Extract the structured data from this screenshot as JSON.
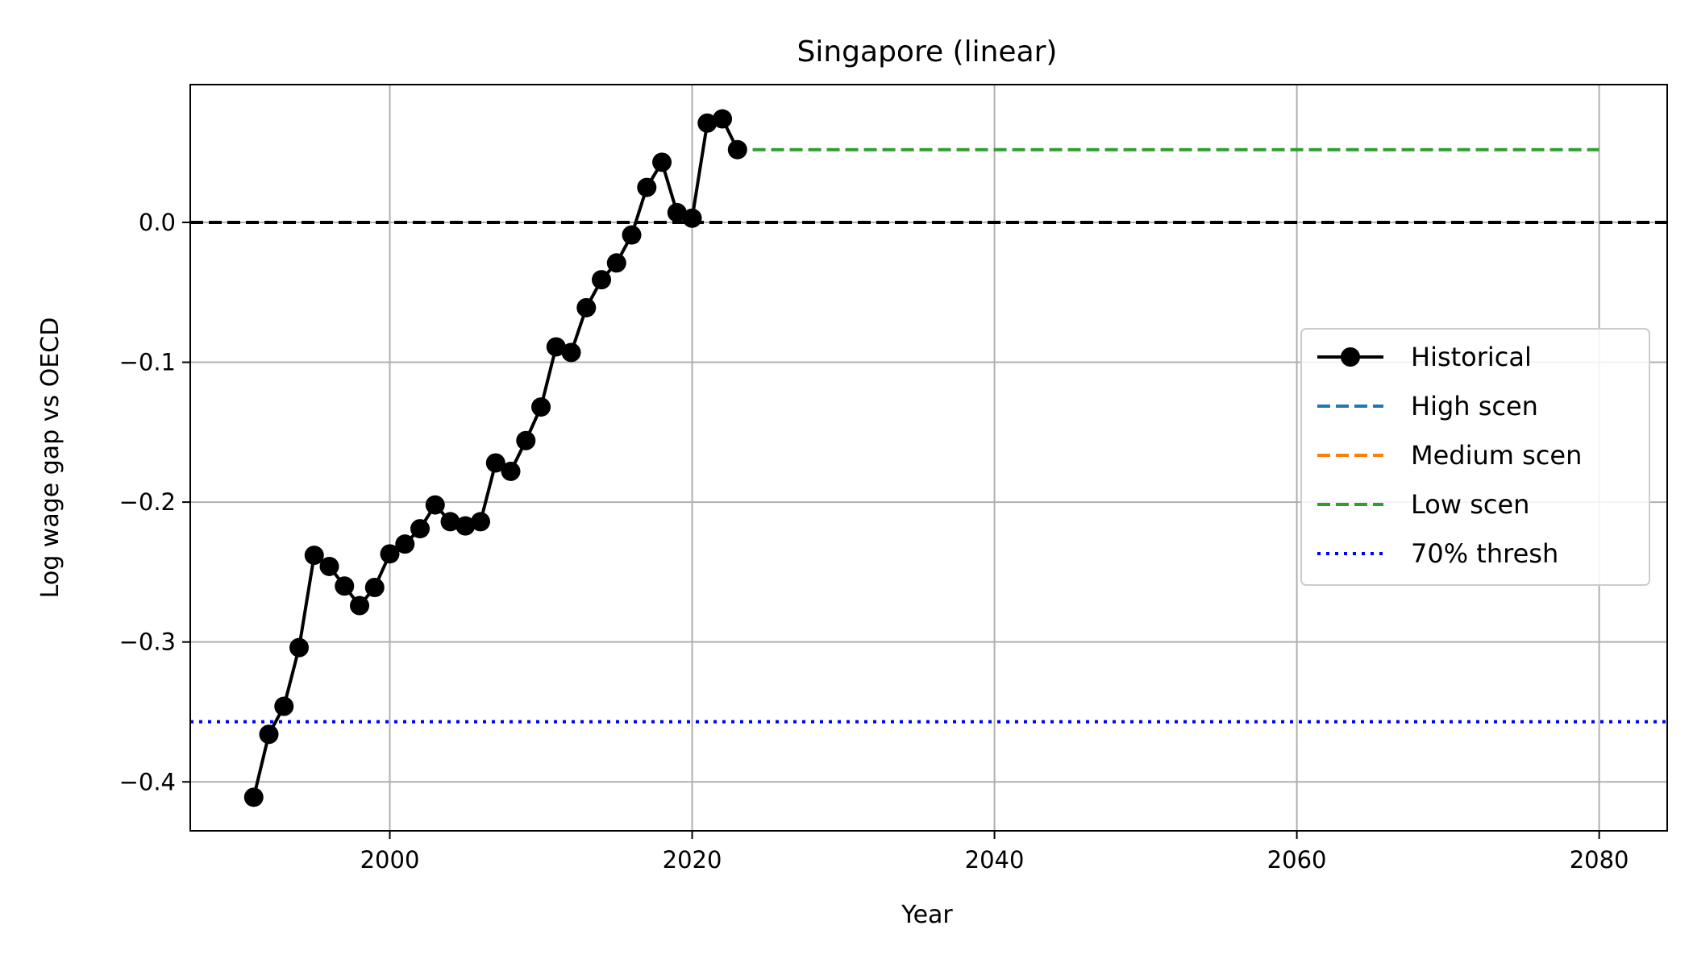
{
  "chart_data": {
    "type": "line",
    "title": "Singapore (linear)",
    "xlabel": "Year",
    "ylabel": "Log wage gap vs OECD",
    "xlim": [
      1986.8,
      2084.5
    ],
    "ylim": [
      -0.435,
      0.0985
    ],
    "xticks": [
      2000,
      2020,
      2040,
      2060,
      2080
    ],
    "yticks": [
      -0.4,
      -0.3,
      -0.2,
      -0.1,
      0.0
    ],
    "ytick_labels": [
      "−0.4",
      "−0.3",
      "−0.2",
      "−0.1",
      "0.0"
    ],
    "grid": true,
    "legend_position": "center-right",
    "series": [
      {
        "name": "Historical",
        "color": "#000000",
        "style": "solid-marker",
        "x": [
          1991,
          1992,
          1993,
          1994,
          1995,
          1996,
          1997,
          1998,
          1999,
          2000,
          2001,
          2002,
          2003,
          2004,
          2005,
          2006,
          2007,
          2008,
          2009,
          2010,
          2011,
          2012,
          2013,
          2014,
          2015,
          2016,
          2017,
          2018,
          2019,
          2020,
          2021,
          2022,
          2023
        ],
        "y": [
          -0.411,
          -0.366,
          -0.346,
          -0.304,
          -0.238,
          -0.246,
          -0.26,
          -0.274,
          -0.261,
          -0.237,
          -0.23,
          -0.219,
          -0.202,
          -0.214,
          -0.217,
          -0.214,
          -0.172,
          -0.178,
          -0.156,
          -0.132,
          -0.089,
          -0.093,
          -0.061,
          -0.041,
          -0.029,
          -0.009,
          0.025,
          0.043,
          0.007,
          0.003,
          0.071,
          0.074,
          0.052
        ]
      },
      {
        "name": "High scen",
        "color": "#1f77b4",
        "style": "dashed",
        "x": [],
        "y": []
      },
      {
        "name": "Medium scen",
        "color": "#ff7f0e",
        "style": "dashed",
        "x": [],
        "y": []
      },
      {
        "name": "Low scen",
        "color": "#2ca02c",
        "style": "dashed",
        "x": [
          2024,
          2080
        ],
        "y": [
          0.052,
          0.052
        ]
      },
      {
        "name": "70% thresh",
        "color": "#0000ff",
        "style": "dotted",
        "y_constant": -0.357
      }
    ],
    "reference_line": {
      "y": 0.0,
      "color": "#000000",
      "style": "dashed"
    }
  }
}
